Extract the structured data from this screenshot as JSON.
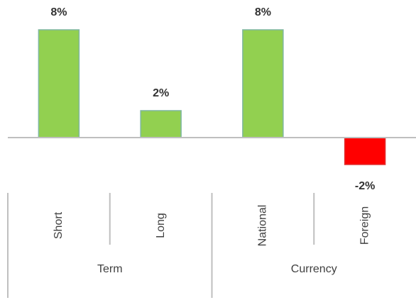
{
  "chart_data": {
    "type": "bar",
    "categories": [
      "Short",
      "Long",
      "National",
      "Foreign"
    ],
    "groups": [
      {
        "label": "Term",
        "count": 2
      },
      {
        "label": "Currency",
        "count": 2
      }
    ],
    "values": [
      8,
      2,
      8,
      -2
    ],
    "value_labels": [
      "8%",
      "2%",
      "8%",
      "-2%"
    ],
    "colors": [
      "#92d050",
      "#92d050",
      "#92d050",
      "#ff0000"
    ]
  }
}
